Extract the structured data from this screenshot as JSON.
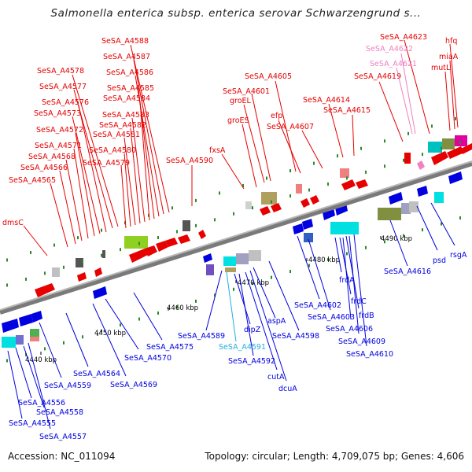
{
  "title": "Salmonella enterica subsp. enterica serovar Schwarzengrund s...",
  "footer": {
    "accession": "Accession: NC_011094",
    "summary": "Topology: circular; Length: 4,709,075 bp; Genes: 4,606"
  },
  "colors": {
    "forward": "#e60000",
    "reverse": "#0000e0",
    "pseudo_forward": "#f080c0",
    "pseudo_reverse": "#20b0e0",
    "backbone": "#888888"
  },
  "ticks": [
    {
      "label": "4440 kbp",
      "pos": 4440
    },
    {
      "label": "4450 kbp",
      "pos": 4450
    },
    {
      "label": "4460 kbp",
      "pos": 4460
    },
    {
      "label": "4470 kbp",
      "pos": 4470
    },
    {
      "label": "4480 kbp",
      "pos": 4480
    },
    {
      "label": "4490 kbp",
      "pos": 4490
    }
  ],
  "forward_genes": [
    {
      "name": "SeSA_A4588"
    },
    {
      "name": "SeSA_A4587"
    },
    {
      "name": "SeSA_A4586"
    },
    {
      "name": "SeSA_A4578"
    },
    {
      "name": "SeSA_A4585"
    },
    {
      "name": "SeSA_A4577"
    },
    {
      "name": "SeSA_A4584"
    },
    {
      "name": "SeSA_A4576"
    },
    {
      "name": "SeSA_A4583"
    },
    {
      "name": "SeSA_A4573"
    },
    {
      "name": "SeSA_A4582"
    },
    {
      "name": "SeSA_A4572"
    },
    {
      "name": "SeSA_A4581"
    },
    {
      "name": "SeSA_A4571"
    },
    {
      "name": "SeSA_A4580"
    },
    {
      "name": "SeSA_A4568"
    },
    {
      "name": "SeSA_A4579"
    },
    {
      "name": "SeSA_A4566"
    },
    {
      "name": "SeSA_A4565"
    },
    {
      "name": "SeSA_A4590"
    },
    {
      "name": "dmsC"
    },
    {
      "name": "fxsA"
    },
    {
      "name": "groES"
    },
    {
      "name": "groEL"
    },
    {
      "name": "SeSA_A4601"
    },
    {
      "name": "SeSA_A4605"
    },
    {
      "name": "efp"
    },
    {
      "name": "SeSA_A4607"
    },
    {
      "name": "SeSA_A4614"
    },
    {
      "name": "SeSA_A4615"
    },
    {
      "name": "SeSA_A4619"
    },
    {
      "name": "SeSA_A4623"
    },
    {
      "name": "hfq"
    },
    {
      "name": "miaA"
    },
    {
      "name": "mutL"
    }
  ],
  "pseudo_forward_genes": [
    {
      "name": "SeSA_A4622"
    },
    {
      "name": "SeSA_A4621"
    }
  ],
  "reverse_genes": [
    {
      "name": "SeSA_A4589"
    },
    {
      "name": "dipZ"
    },
    {
      "name": "aspA"
    },
    {
      "name": "SeSA_A4592"
    },
    {
      "name": "cutA"
    },
    {
      "name": "dcuA"
    },
    {
      "name": "SeSA_A4598"
    },
    {
      "name": "SeSA_A4602"
    },
    {
      "name": "SeSA_A4603"
    },
    {
      "name": "frdA"
    },
    {
      "name": "frdC"
    },
    {
      "name": "frdB"
    },
    {
      "name": "SeSA_A4606"
    },
    {
      "name": "SeSA_A4609"
    },
    {
      "name": "SeSA_A4610"
    },
    {
      "name": "SeSA_A4616"
    },
    {
      "name": "psd"
    },
    {
      "name": "rsgA"
    },
    {
      "name": "SeSA_A4575"
    },
    {
      "name": "SeSA_A4570"
    },
    {
      "name": "SeSA_A4569"
    },
    {
      "name": "SeSA_A4564"
    },
    {
      "name": "SeSA_A4559"
    },
    {
      "name": "SeSA_A4556"
    },
    {
      "name": "SeSA_A4558"
    },
    {
      "name": "SeSA_A4555"
    },
    {
      "name": "SeSA_A4557"
    }
  ],
  "pseudo_reverse_genes": [
    {
      "name": "SeSA_A4591"
    }
  ]
}
